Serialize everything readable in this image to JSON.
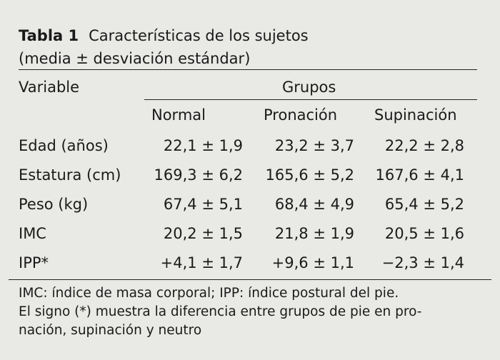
{
  "table": {
    "number": "Tabla 1",
    "title_line1": "Características de los sujetos",
    "title_line2": "(media ± desviación estándar)",
    "header": {
      "variable": "Variable",
      "groups": "Grupos",
      "columns": [
        "Normal",
        "Pronación",
        "Supinación"
      ]
    },
    "rows": [
      {
        "label": "Edad (años)",
        "values": [
          "22,1 ± 1,9",
          "23,2 ± 3,7",
          "22,2 ± 2,8"
        ]
      },
      {
        "label": "Estatura (cm)",
        "values": [
          "169,3 ± 6,2",
          "165,6 ± 5,2",
          "167,6 ± 4,1"
        ]
      },
      {
        "label": "Peso (kg)",
        "values": [
          "67,4 ± 5,1",
          "68,4 ± 4,9",
          "65,4 ± 5,2"
        ]
      },
      {
        "label": "IMC",
        "values": [
          "20,2 ± 1,5",
          "21,8 ± 1,9",
          "20,5 ± 1,6"
        ]
      },
      {
        "label": "IPP*",
        "values": [
          "+4,1 ± 1,7",
          "+9,6 ± 1,1",
          "−2,3 ± 1,4"
        ]
      }
    ],
    "footnote_line1": "IMC: índice de masa corporal; IPP: índice postural del pie.",
    "footnote_line2": "El signo (*) muestra la diferencia entre grupos de pie en pro-",
    "footnote_line3": "nación, supinación y neutro"
  }
}
